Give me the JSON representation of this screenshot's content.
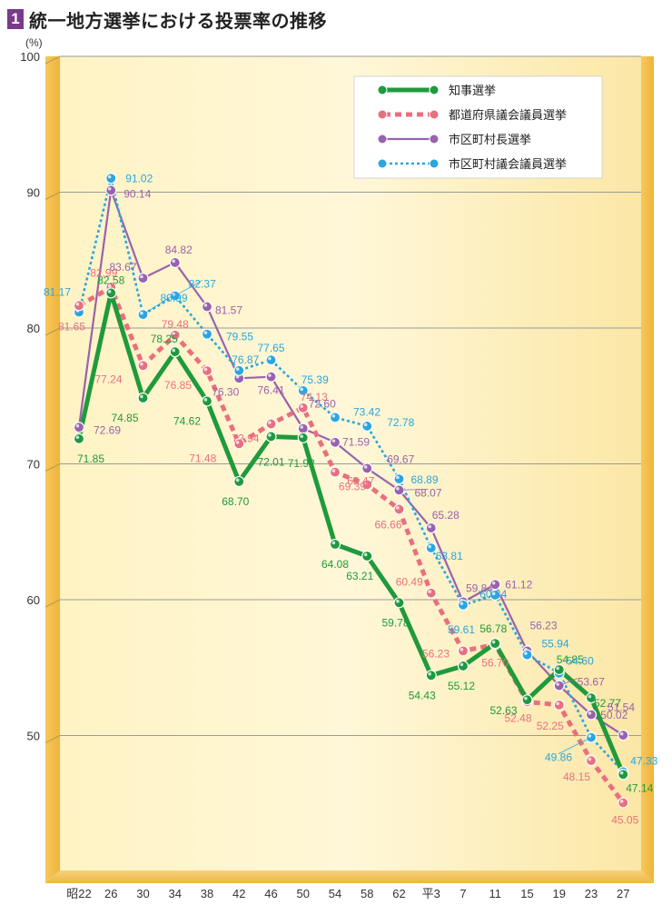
{
  "title": {
    "number": "1",
    "text": "統一地方選挙における投票率の推移"
  },
  "unit_label": "(%)",
  "colors": {
    "governor": "#1f9a3c",
    "pref_assembly": "#e8707e",
    "mayor": "#9a62ac",
    "muni_assembly": "#2aa6df"
  },
  "chart_data": {
    "type": "line",
    "x": [
      "昭22",
      "26",
      "30",
      "34",
      "38",
      "42",
      "46",
      "50",
      "54",
      "58",
      "62",
      "平3",
      "7",
      "11",
      "15",
      "19",
      "23",
      "27"
    ],
    "ylim": [
      40,
      100
    ],
    "yticks": [
      50,
      60,
      70,
      80,
      90,
      100
    ],
    "grid": true,
    "legend_position": "top-right",
    "series": [
      {
        "key": "governor",
        "name": "知事選挙",
        "style": "solid",
        "values": [
          71.85,
          82.58,
          74.85,
          78.25,
          74.62,
          68.7,
          72.01,
          71.92,
          64.08,
          63.21,
          59.78,
          54.43,
          55.12,
          56.78,
          52.63,
          54.85,
          52.77,
          47.14
        ]
      },
      {
        "key": "pref_assembly",
        "name": "都道府県議会議員選挙",
        "style": "dashed",
        "values": [
          81.65,
          82.99,
          77.24,
          79.48,
          76.85,
          71.48,
          72.94,
          74.13,
          69.39,
          68.47,
          66.66,
          60.49,
          56.23,
          56.7,
          52.48,
          52.25,
          48.15,
          45.05
        ]
      },
      {
        "key": "mayor",
        "name": "市区町村長選挙",
        "style": "solid",
        "values": [
          72.69,
          90.14,
          83.67,
          84.82,
          81.57,
          76.3,
          76.41,
          72.6,
          71.59,
          69.67,
          68.07,
          65.28,
          59.84,
          61.12,
          56.23,
          53.67,
          51.54,
          50.02
        ]
      },
      {
        "key": "muni_assembly",
        "name": "市区町村議会議員選挙",
        "style": "dotted",
        "values": [
          81.17,
          91.02,
          80.99,
          82.37,
          79.55,
          76.87,
          77.65,
          75.39,
          73.42,
          72.78,
          68.89,
          63.81,
          59.61,
          60.34,
          55.94,
          54.6,
          49.86,
          47.33
        ]
      }
    ]
  }
}
